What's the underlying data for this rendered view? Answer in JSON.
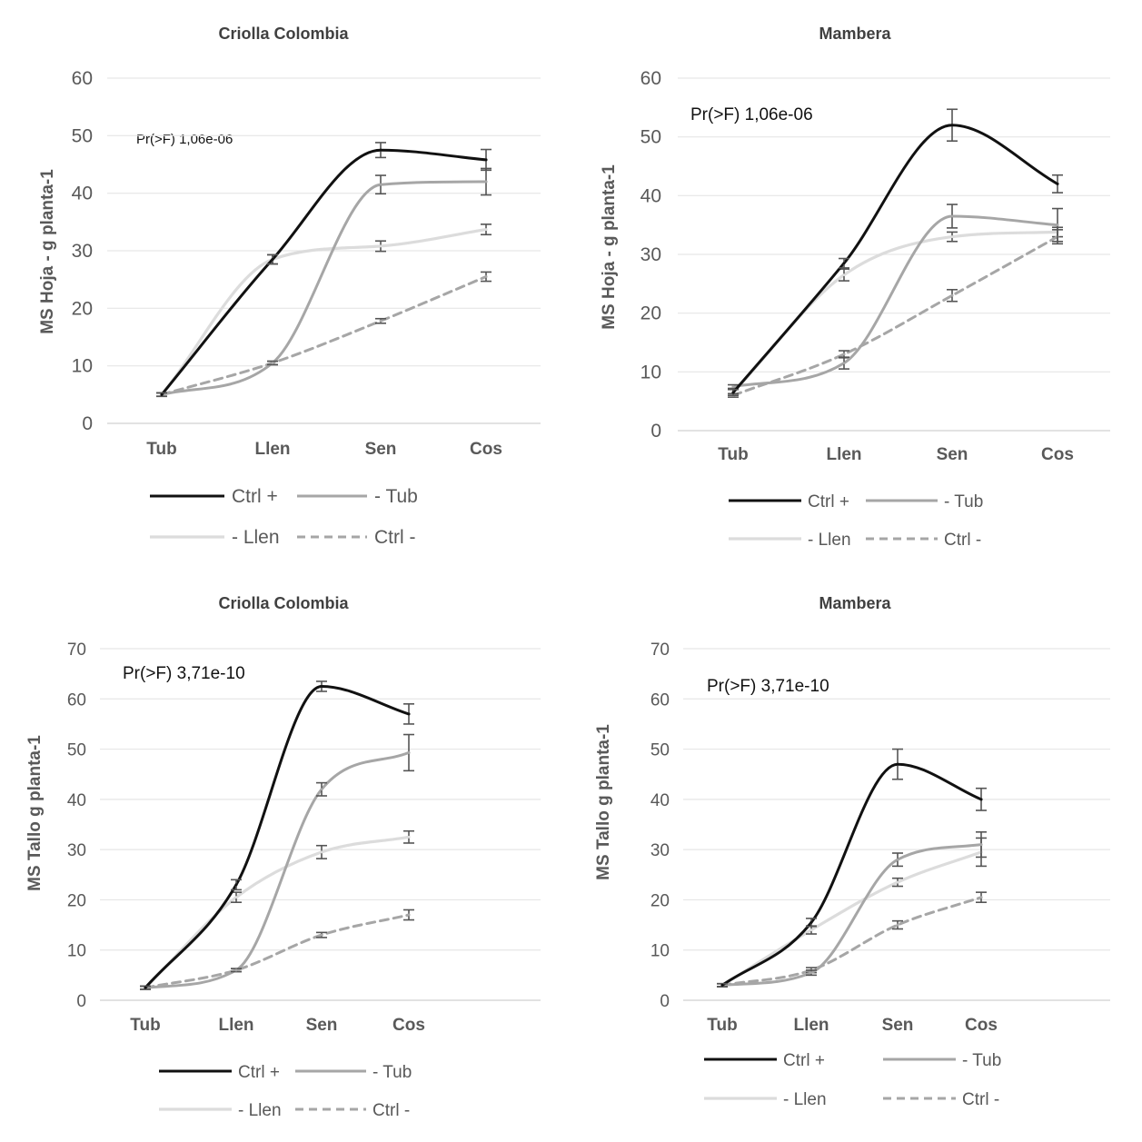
{
  "colors": {
    "ctrl_plus": "#111111",
    "minus_tub": "#a6a6a6",
    "minus_llen": "#dcdcdc",
    "ctrl_minus": "#a6a6a6",
    "grid": "#e6e6e6",
    "axis_text": "#595959",
    "title_text": "#404040",
    "error_bar": "#555555"
  },
  "chart_data": [
    {
      "id": "tl",
      "type": "line",
      "title": "Criolla Colombia",
      "ylabel": "MS Hoja - g planta-1",
      "xlabel": "",
      "annotation": "Pr(>F) 1,06e-06",
      "ylim": [
        0,
        60
      ],
      "yticks": [
        0,
        10,
        20,
        30,
        40,
        50,
        60
      ],
      "categories": [
        "Tub",
        "Llen",
        "Sen",
        "Cos"
      ],
      "grid": true,
      "legend_position": "bottom",
      "series": [
        {
          "name": "Ctrl +",
          "values": [
            5,
            28.5,
            47.5,
            45.8
          ],
          "errors": [
            0.3,
            0.8,
            1.3,
            1.8
          ]
        },
        {
          "name": "- Tub",
          "values": [
            5,
            10.5,
            41.5,
            42
          ],
          "errors": [
            0.3,
            0.3,
            1.6,
            2.3
          ]
        },
        {
          "name": "- Llen",
          "values": [
            5,
            28.5,
            30.8,
            33.7
          ],
          "errors": [
            0.3,
            0.8,
            0.9,
            0.9
          ]
        },
        {
          "name": "Ctrl -",
          "values": [
            5,
            10.5,
            17.8,
            25.5
          ],
          "errors": [
            0.3,
            0.3,
            0.4,
            0.8
          ]
        }
      ]
    },
    {
      "id": "tr",
      "type": "line",
      "title": "Mambera",
      "ylabel": "MS Hoja - g planta-1",
      "xlabel": "",
      "annotation": "Pr(>F) 1,06e-06",
      "ylim": [
        0,
        60
      ],
      "yticks": [
        0,
        10,
        20,
        30,
        40,
        50,
        60
      ],
      "categories": [
        "Tub",
        "Llen",
        "Sen",
        "Cos"
      ],
      "grid": true,
      "legend_position": "bottom",
      "series": [
        {
          "name": "Ctrl +",
          "values": [
            6.5,
            28.5,
            52,
            42
          ],
          "errors": [
            0.5,
            0.8,
            2.7,
            1.5
          ]
        },
        {
          "name": "- Tub",
          "values": [
            7.5,
            11.5,
            36.5,
            35
          ],
          "errors": [
            0.3,
            1.0,
            2.0,
            2.8
          ]
        },
        {
          "name": "- Llen",
          "values": [
            6.5,
            26.5,
            33,
            33.8
          ],
          "errors": [
            0.5,
            1.0,
            0.8,
            0.8
          ]
        },
        {
          "name": "Ctrl -",
          "values": [
            6,
            13,
            23,
            33
          ],
          "errors": [
            0.3,
            0.6,
            1.0,
            1.2
          ]
        }
      ]
    },
    {
      "id": "bl",
      "type": "line",
      "title": "Criolla Colombia",
      "ylabel": "MS Tallo g planta-1",
      "xlabel": "",
      "annotation": "Pr(>F) 3,71e-10",
      "ylim": [
        0,
        70
      ],
      "yticks": [
        0,
        10,
        20,
        30,
        40,
        50,
        60,
        70
      ],
      "categories": [
        "Tub",
        "Llen",
        "Sen",
        "Cos"
      ],
      "grid": true,
      "legend_position": "bottom",
      "series": [
        {
          "name": "Ctrl +",
          "values": [
            2.5,
            23,
            62.5,
            57
          ],
          "errors": [
            0.3,
            1.0,
            1.0,
            2.0
          ]
        },
        {
          "name": "- Tub",
          "values": [
            2.5,
            6,
            42,
            49.3
          ],
          "errors": [
            0.3,
            0.3,
            1.3,
            3.6
          ]
        },
        {
          "name": "- Llen",
          "values": [
            2.5,
            20.5,
            29.5,
            32.5
          ],
          "errors": [
            0.3,
            1.0,
            1.3,
            1.2
          ]
        },
        {
          "name": "Ctrl -",
          "values": [
            2.5,
            6,
            13,
            17
          ],
          "errors": [
            0.3,
            0.3,
            0.5,
            1.0
          ]
        }
      ]
    },
    {
      "id": "br",
      "type": "line",
      "title": "Mambera",
      "ylabel": "MS Tallo g planta-1",
      "xlabel": "",
      "annotation": "Pr(>F) 3,71e-10",
      "ylim": [
        0,
        70
      ],
      "yticks": [
        0,
        10,
        20,
        30,
        40,
        50,
        60,
        70
      ],
      "categories": [
        "Tub",
        "Llen",
        "Sen",
        "Cos"
      ],
      "grid": true,
      "legend_position": "bottom",
      "series": [
        {
          "name": "Ctrl +",
          "values": [
            3,
            15.5,
            47,
            40
          ],
          "errors": [
            0.3,
            0.8,
            3.0,
            2.2
          ]
        },
        {
          "name": "- Tub",
          "values": [
            3,
            5.5,
            28,
            31
          ],
          "errors": [
            0.3,
            0.5,
            1.3,
            2.5
          ]
        },
        {
          "name": "- Llen",
          "values": [
            3,
            14,
            23.5,
            29.5
          ],
          "errors": [
            0.3,
            0.8,
            0.8,
            2.8
          ]
        },
        {
          "name": "Ctrl -",
          "values": [
            3,
            6,
            15,
            20.5
          ],
          "errors": [
            0.3,
            0.5,
            0.8,
            1.0
          ]
        }
      ]
    }
  ]
}
